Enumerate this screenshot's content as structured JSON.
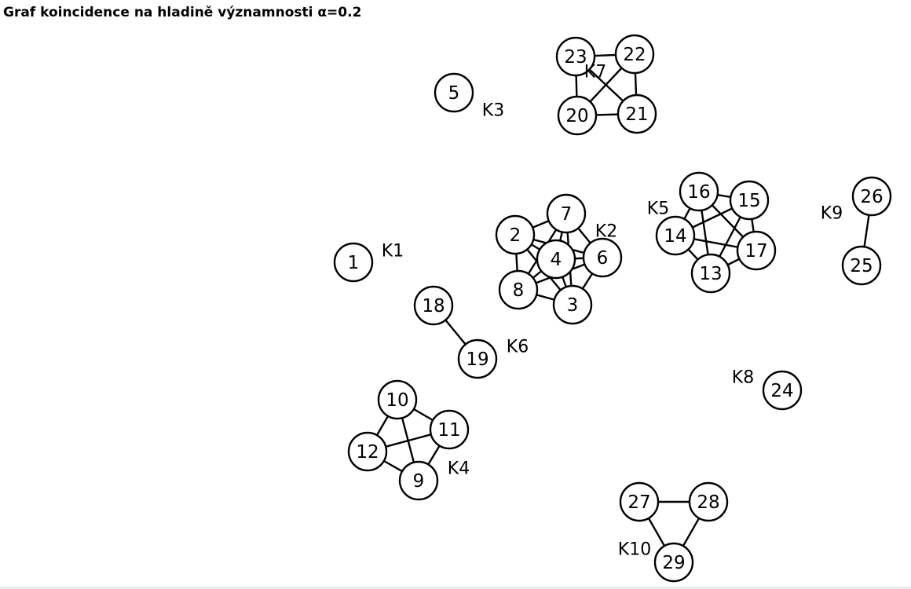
{
  "title": "Graf koincidence na hladině významnosti α=0.2",
  "colors": {
    "stroke": "#000000",
    "node_fill": "#ffffff",
    "text": "#000000"
  },
  "nodes": [
    {
      "id": "1",
      "label": "1"
    },
    {
      "id": "2",
      "label": "2"
    },
    {
      "id": "3",
      "label": "3"
    },
    {
      "id": "4",
      "label": "4"
    },
    {
      "id": "5",
      "label": "5"
    },
    {
      "id": "6",
      "label": "6"
    },
    {
      "id": "7",
      "label": "7"
    },
    {
      "id": "8",
      "label": "8"
    },
    {
      "id": "9",
      "label": "9"
    },
    {
      "id": "10",
      "label": "10"
    },
    {
      "id": "11",
      "label": "11"
    },
    {
      "id": "12",
      "label": "12"
    },
    {
      "id": "13",
      "label": "13"
    },
    {
      "id": "14",
      "label": "14"
    },
    {
      "id": "15",
      "label": "15"
    },
    {
      "id": "16",
      "label": "16"
    },
    {
      "id": "17",
      "label": "17"
    },
    {
      "id": "18",
      "label": "18"
    },
    {
      "id": "19",
      "label": "19"
    },
    {
      "id": "20",
      "label": "20"
    },
    {
      "id": "21",
      "label": "21"
    },
    {
      "id": "22",
      "label": "22"
    },
    {
      "id": "23",
      "label": "23"
    },
    {
      "id": "24",
      "label": "24"
    },
    {
      "id": "25",
      "label": "25"
    },
    {
      "id": "26",
      "label": "26"
    },
    {
      "id": "27",
      "label": "27"
    },
    {
      "id": "28",
      "label": "28"
    },
    {
      "id": "29",
      "label": "29"
    }
  ],
  "edges": [
    [
      "2",
      "7"
    ],
    [
      "2",
      "4"
    ],
    [
      "2",
      "8"
    ],
    [
      "2",
      "3"
    ],
    [
      "2",
      "6"
    ],
    [
      "7",
      "4"
    ],
    [
      "7",
      "6"
    ],
    [
      "7",
      "8"
    ],
    [
      "7",
      "3"
    ],
    [
      "4",
      "6"
    ],
    [
      "4",
      "8"
    ],
    [
      "4",
      "3"
    ],
    [
      "6",
      "8"
    ],
    [
      "6",
      "3"
    ],
    [
      "8",
      "3"
    ],
    [
      "23",
      "22"
    ],
    [
      "23",
      "20"
    ],
    [
      "23",
      "21"
    ],
    [
      "22",
      "20"
    ],
    [
      "22",
      "21"
    ],
    [
      "20",
      "21"
    ],
    [
      "16",
      "15"
    ],
    [
      "16",
      "14"
    ],
    [
      "16",
      "13"
    ],
    [
      "16",
      "17"
    ],
    [
      "15",
      "14"
    ],
    [
      "15",
      "13"
    ],
    [
      "15",
      "17"
    ],
    [
      "14",
      "13"
    ],
    [
      "14",
      "17"
    ],
    [
      "13",
      "17"
    ],
    [
      "10",
      "11"
    ],
    [
      "10",
      "12"
    ],
    [
      "10",
      "9"
    ],
    [
      "11",
      "12"
    ],
    [
      "11",
      "9"
    ],
    [
      "12",
      "9"
    ],
    [
      "18",
      "19"
    ],
    [
      "26",
      "25"
    ],
    [
      "27",
      "28"
    ],
    [
      "27",
      "29"
    ],
    [
      "28",
      "29"
    ]
  ],
  "clusters": [
    {
      "id": "K1",
      "label": "K1"
    },
    {
      "id": "K2",
      "label": "K2"
    },
    {
      "id": "K3",
      "label": "K3"
    },
    {
      "id": "K4",
      "label": "K4"
    },
    {
      "id": "K5",
      "label": "K5"
    },
    {
      "id": "K6",
      "label": "K6"
    },
    {
      "id": "K7",
      "label": "K7"
    },
    {
      "id": "K8",
      "label": "K8"
    },
    {
      "id": "K9",
      "label": "K9"
    },
    {
      "id": "K10",
      "label": "K10"
    }
  ]
}
